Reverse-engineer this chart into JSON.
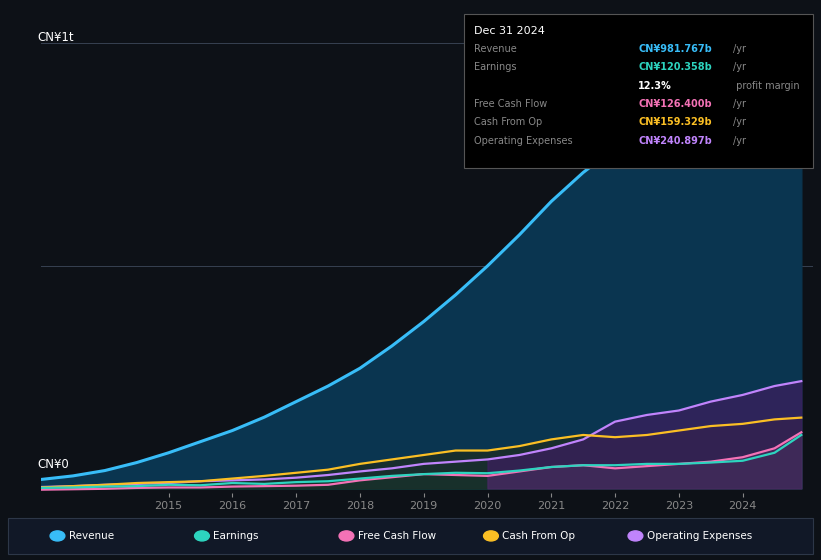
{
  "background_color": "#0d1117",
  "plot_bg_color": "#0d1117",
  "info_box_date": "Dec 31 2024",
  "ylabel_top": "CN¥1t",
  "ylabel_bottom": "CN¥0",
  "info_rows": [
    {
      "label": "Revenue",
      "value": "CN¥981.767b",
      "unit": "/yr",
      "color": "#38bdf8"
    },
    {
      "label": "Earnings",
      "value": "CN¥120.358b",
      "unit": "/yr",
      "color": "#2dd4bf"
    },
    {
      "label": "",
      "value": "12.3%",
      "unit": " profit margin",
      "color": "#ffffff"
    },
    {
      "label": "Free Cash Flow",
      "value": "CN¥126.400b",
      "unit": "/yr",
      "color": "#f472b6"
    },
    {
      "label": "Cash From Op",
      "value": "CN¥159.329b",
      "unit": "/yr",
      "color": "#fbbf24"
    },
    {
      "label": "Operating Expenses",
      "value": "CN¥240.897b",
      "unit": "/yr",
      "color": "#c084fc"
    }
  ],
  "legend": [
    {
      "label": "Revenue",
      "color": "#38bdf8"
    },
    {
      "label": "Earnings",
      "color": "#2dd4bf"
    },
    {
      "label": "Free Cash Flow",
      "color": "#f472b6"
    },
    {
      "label": "Cash From Op",
      "color": "#fbbf24"
    },
    {
      "label": "Operating Expenses",
      "color": "#c084fc"
    }
  ],
  "years": [
    2013.0,
    2013.5,
    2014.0,
    2014.5,
    2015.0,
    2015.5,
    2016.0,
    2016.5,
    2017.0,
    2017.5,
    2018.0,
    2018.5,
    2019.0,
    2019.5,
    2020.0,
    2020.5,
    2021.0,
    2021.5,
    2022.0,
    2022.5,
    2023.0,
    2023.5,
    2024.0,
    2024.5,
    2024.92
  ],
  "revenue": [
    20,
    28,
    40,
    58,
    80,
    105,
    130,
    160,
    195,
    230,
    270,
    320,
    375,
    435,
    500,
    570,
    645,
    710,
    765,
    810,
    840,
    870,
    900,
    945,
    982
  ],
  "earnings": [
    1,
    2,
    4,
    5,
    8,
    7,
    12,
    10,
    14,
    16,
    22,
    28,
    32,
    35,
    34,
    40,
    48,
    52,
    52,
    55,
    55,
    58,
    62,
    80,
    120
  ],
  "fcf": [
    -3,
    -2,
    -1,
    1,
    2,
    2,
    4,
    5,
    6,
    8,
    18,
    25,
    32,
    30,
    28,
    38,
    48,
    52,
    45,
    50,
    55,
    60,
    70,
    90,
    126
  ],
  "cashfromop": [
    2,
    5,
    8,
    12,
    14,
    16,
    22,
    28,
    35,
    42,
    55,
    65,
    75,
    85,
    85,
    95,
    110,
    120,
    115,
    120,
    130,
    140,
    145,
    155,
    159
  ],
  "opex": [
    3,
    5,
    8,
    10,
    12,
    16,
    18,
    20,
    24,
    30,
    38,
    45,
    55,
    60,
    65,
    75,
    90,
    110,
    150,
    165,
    175,
    195,
    210,
    230,
    241
  ],
  "xlim": [
    2013.0,
    2025.1
  ],
  "ylim": [
    -10,
    1060
  ],
  "gridlines": [
    500,
    1000
  ],
  "xtick_years": [
    2015,
    2016,
    2017,
    2018,
    2019,
    2020,
    2021,
    2022,
    2023,
    2024
  ]
}
